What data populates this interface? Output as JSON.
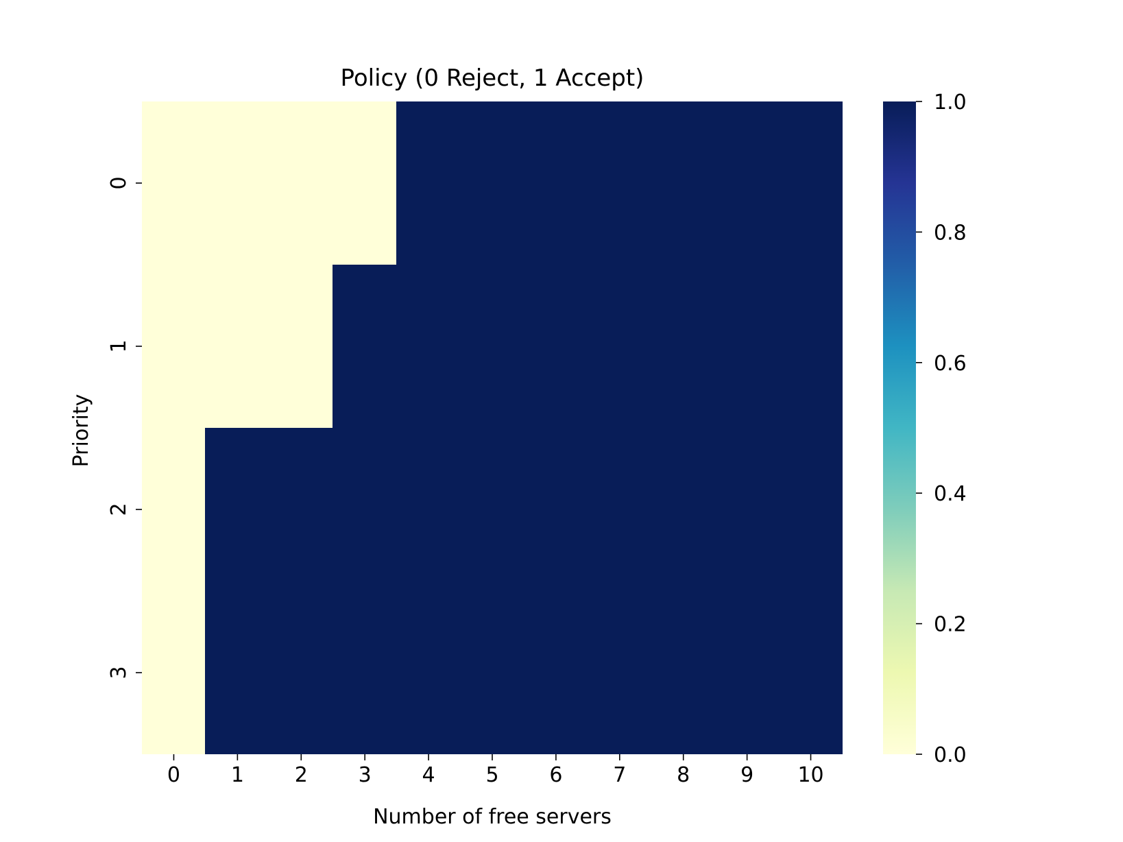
{
  "chart_data": {
    "type": "heatmap",
    "title": "Policy (0 Reject, 1 Accept)",
    "xlabel": "Number of free servers",
    "ylabel": "Priority",
    "x_categories": [
      "0",
      "1",
      "2",
      "3",
      "4",
      "5",
      "6",
      "7",
      "8",
      "9",
      "10"
    ],
    "y_categories": [
      "0",
      "1",
      "2",
      "3"
    ],
    "values": [
      [
        0,
        0,
        0,
        0,
        1,
        1,
        1,
        1,
        1,
        1,
        1
      ],
      [
        0,
        0,
        0,
        1,
        1,
        1,
        1,
        1,
        1,
        1,
        1
      ],
      [
        0,
        1,
        1,
        1,
        1,
        1,
        1,
        1,
        1,
        1,
        1
      ],
      [
        0,
        1,
        1,
        1,
        1,
        1,
        1,
        1,
        1,
        1,
        1
      ]
    ],
    "colorbar": {
      "colormap": "YlGnBu",
      "range": [
        0.0,
        1.0
      ],
      "ticks": [
        "0.0",
        "0.2",
        "0.4",
        "0.6",
        "0.8",
        "1.0"
      ],
      "colors": [
        "#ffffd9",
        "#edf8b1",
        "#c7e9b4",
        "#7fcdbb",
        "#41b6c4",
        "#1d91c0",
        "#225ea8",
        "#253494",
        "#081d58"
      ]
    },
    "grid": false,
    "legend": "colorbar-right"
  }
}
